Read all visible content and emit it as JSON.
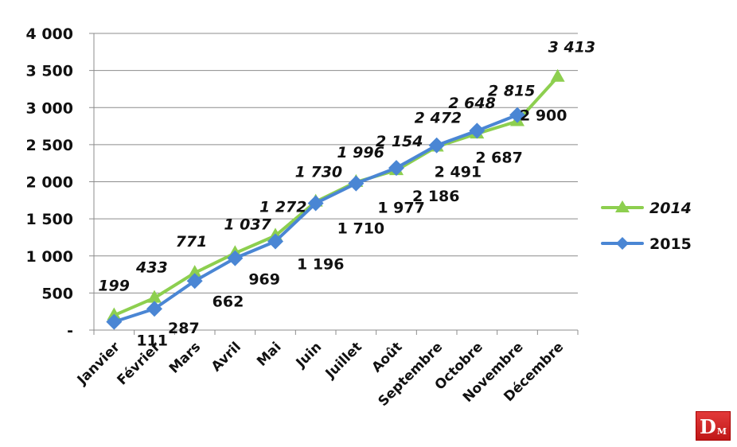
{
  "chart_data": {
    "type": "line",
    "title": "",
    "xlabel": "",
    "ylabel": "",
    "ylim": [
      0,
      4000
    ],
    "yticks": [
      0,
      500,
      1000,
      1500,
      2000,
      2500,
      3000,
      3500,
      4000
    ],
    "ytick_labels": [
      "-",
      "500",
      "1 000",
      "1 500",
      "2 000",
      "2 500",
      "3 000",
      "3 500",
      "4 000"
    ],
    "grid": true,
    "legend_position": "right",
    "categories": [
      "Janvier",
      "Février",
      "Mars",
      "Avril",
      "Mai",
      "Juin",
      "Juillet",
      "Août",
      "Septembre",
      "Octobre",
      "Novembre",
      "Décembre"
    ],
    "series": [
      {
        "name": "2014",
        "color": "#8dcf4f",
        "marker": "triangle",
        "label_style": "italic",
        "values": [
          199,
          433,
          771,
          1037,
          1272,
          1730,
          1996,
          2154,
          2472,
          2648,
          2815,
          3413
        ],
        "labels": [
          "199",
          "433",
          "771",
          "1 037",
          "1 272",
          "1 730",
          "1 996",
          "2 154",
          "2 472",
          "2 648",
          "2 815",
          "3 413"
        ]
      },
      {
        "name": "2015",
        "color": "#4a86d4",
        "marker": "diamond",
        "label_style": "normal",
        "values": [
          111,
          287,
          662,
          969,
          1196,
          1710,
          1977,
          2186,
          2491,
          2687,
          2900
        ],
        "labels": [
          "111",
          "287",
          "662",
          "969",
          "1 196",
          "1 710",
          "1 977",
          "2 186",
          "2 491",
          "2 687",
          "2 900"
        ]
      }
    ]
  },
  "legend": {
    "items": [
      {
        "label": "2014"
      },
      {
        "label": "2015"
      }
    ]
  },
  "logo": {
    "d": "D",
    "m": "M"
  }
}
